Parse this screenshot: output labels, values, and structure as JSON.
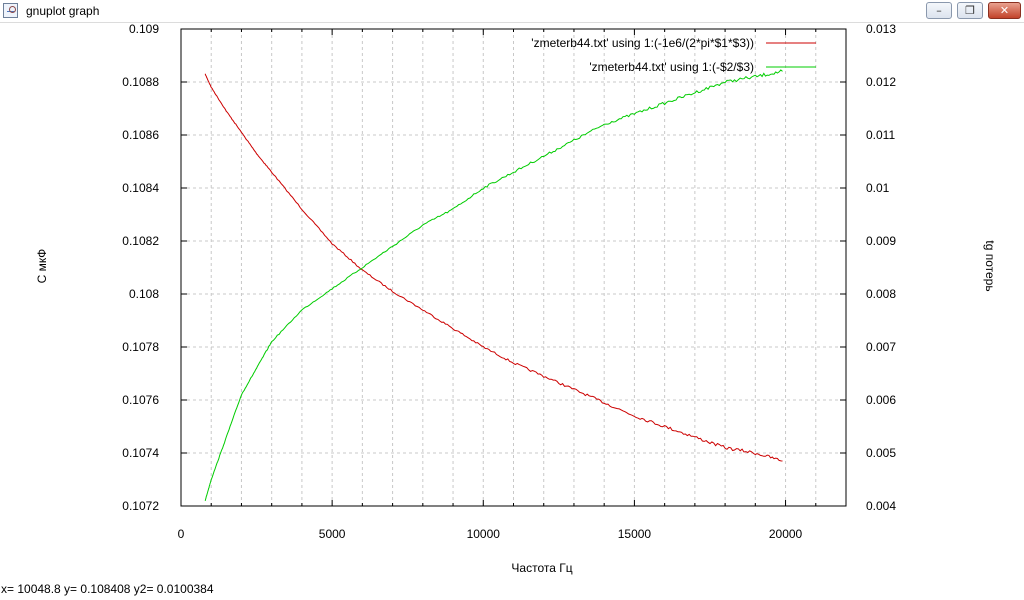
{
  "window": {
    "title": "gnuplot graph",
    "icon": "gnuplot-graph-icon",
    "controls": {
      "minimize": "–",
      "restore": "❐",
      "close": "✕"
    }
  },
  "status_text": "x= 10048.8 y= 0.108408 y2= 0.0100384",
  "chart_data": {
    "type": "line",
    "xlabel": "Частота Гц",
    "ylabel": "C мкФ",
    "y2label": "tg потерь",
    "xlim": [
      0,
      22000
    ],
    "ylim": [
      0.1072,
      0.109
    ],
    "y2lim": [
      0.004,
      0.013
    ],
    "x_ticks": [
      "0",
      "5000",
      "10000",
      "15000",
      "20000"
    ],
    "y_ticks": [
      "0.1072",
      "0.1074",
      "0.1076",
      "0.1078",
      "0.108",
      "0.1082",
      "0.1084",
      "0.1086",
      "0.1088",
      "0.109"
    ],
    "y2_ticks": [
      "0.004",
      "0.005",
      "0.006",
      "0.007",
      "0.008",
      "0.009",
      "0.01",
      "0.011",
      "0.012",
      "0.013"
    ],
    "grid": true,
    "legend_position": "top-right",
    "series": [
      {
        "name": "'zmeterb44.txt' using 1:(-1e6/(2*pi*$1*$3))",
        "axis": "y",
        "color": "#cc0000",
        "x": [
          800,
          1000,
          1500,
          2000,
          2500,
          3000,
          4000,
          5000,
          6000,
          7000,
          8000,
          9000,
          10000,
          11000,
          12000,
          13000,
          14000,
          15000,
          16000,
          17000,
          18000,
          19000,
          19900
        ],
        "y": [
          0.10883,
          0.10878,
          0.10869,
          0.10861,
          0.10853,
          0.10846,
          0.10832,
          0.10819,
          0.10809,
          0.10801,
          0.10794,
          0.10787,
          0.1078,
          0.10774,
          0.10769,
          0.10764,
          0.10759,
          0.10754,
          0.1075,
          0.10746,
          0.10742,
          0.1074,
          0.10737
        ]
      },
      {
        "name": "'zmeterb44.txt' using 1:(-$2/$3)",
        "axis": "y2",
        "color": "#00cc00",
        "x": [
          800,
          1000,
          1500,
          2000,
          2500,
          3000,
          4000,
          5000,
          6000,
          7000,
          8000,
          9000,
          10000,
          11000,
          12000,
          13000,
          14000,
          15000,
          16000,
          17000,
          18000,
          19000,
          19900
        ],
        "y": [
          0.0041,
          0.0045,
          0.0053,
          0.0061,
          0.0066,
          0.0071,
          0.0077,
          0.0081,
          0.0085,
          0.0089,
          0.0093,
          0.0096,
          0.01,
          0.0103,
          0.0106,
          0.0109,
          0.0112,
          0.0114,
          0.0116,
          0.0118,
          0.012,
          0.0121,
          0.0122
        ]
      }
    ]
  }
}
